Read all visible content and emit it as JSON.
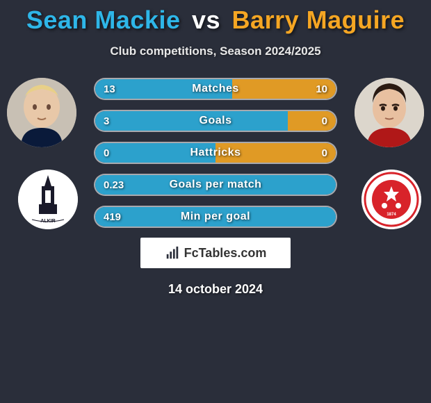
{
  "title": {
    "player1": "Sean Mackie",
    "vs": "vs",
    "player2": "Barry Maguire",
    "player1_color": "#2eb6e8",
    "player2_color": "#f5a623"
  },
  "subtitle": "Club competitions, Season 2024/2025",
  "background_color": "#2a2e3a",
  "bar_border_color": "rgba(255,255,255,0.6)",
  "left_fill_color": "rgba(46,182,232,0.85)",
  "right_fill_color": "rgba(245,166,35,0.9)",
  "stats": [
    {
      "label": "Matches",
      "left_val": "13",
      "right_val": "10",
      "left_pct": 57,
      "right_pct": 43
    },
    {
      "label": "Goals",
      "left_val": "3",
      "right_val": "0",
      "left_pct": 80,
      "right_pct": 20
    },
    {
      "label": "Hattricks",
      "left_val": "0",
      "right_val": "0",
      "left_pct": 50,
      "right_pct": 50
    },
    {
      "label": "Goals per match",
      "left_val": "0.23",
      "right_val": "",
      "left_pct": 100,
      "right_pct": 0
    },
    {
      "label": "Min per goal",
      "left_val": "419",
      "right_val": "",
      "left_pct": 100,
      "right_pct": 0
    }
  ],
  "brand": "FcTables.com",
  "date": "14 october 2024",
  "avatar_left_bg": "#c9c2b8",
  "avatar_right_bg": "#d8d4cc",
  "club_left_name": "Falkirk",
  "club_right_name": "Hamilton Academical",
  "club_right_color": "#d8232a"
}
